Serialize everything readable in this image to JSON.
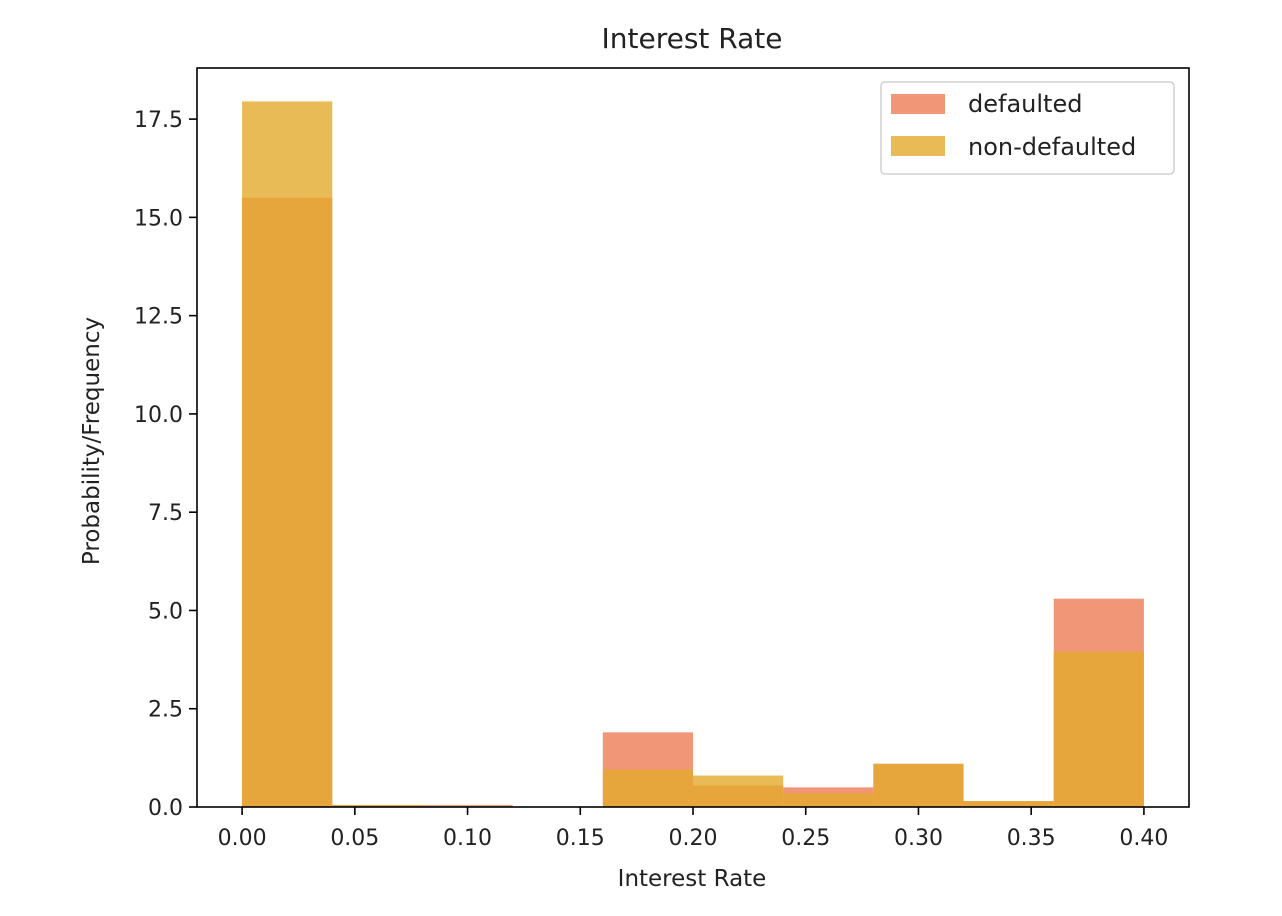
{
  "chart_data": {
    "type": "bar",
    "title": "Interest Rate",
    "xlabel": "Interest Rate",
    "ylabel": "Probability/Frequency",
    "xlim": [
      -0.02,
      0.42
    ],
    "ylim": [
      0,
      18.8
    ],
    "bin_edges": [
      0.0,
      0.04,
      0.08,
      0.12,
      0.16,
      0.2,
      0.24,
      0.28,
      0.32,
      0.36,
      0.4
    ],
    "xticks": [
      "0.00",
      "0.05",
      "0.10",
      "0.15",
      "0.20",
      "0.25",
      "0.30",
      "0.35",
      "0.40"
    ],
    "xtick_values": [
      0.0,
      0.05,
      0.1,
      0.15,
      0.2,
      0.25,
      0.3,
      0.35,
      0.4
    ],
    "yticks": [
      "0.0",
      "2.5",
      "5.0",
      "7.5",
      "10.0",
      "12.5",
      "15.0",
      "17.5"
    ],
    "ytick_values": [
      0,
      2.5,
      5.0,
      7.5,
      10.0,
      12.5,
      15.0,
      17.5
    ],
    "grid": false,
    "legend_position": "top-right",
    "series": [
      {
        "name": "defaulted",
        "color": "#ef7c56",
        "opacity": 0.8,
        "values": [
          15.5,
          0.05,
          0.05,
          0.0,
          1.9,
          0.55,
          0.5,
          1.1,
          0.15,
          5.3
        ]
      },
      {
        "name": "non-defaulted",
        "color": "#e2aa2c",
        "opacity": 0.8,
        "values": [
          17.95,
          0.05,
          0.0,
          0.0,
          0.95,
          0.8,
          0.35,
          1.1,
          0.15,
          3.95
        ]
      }
    ]
  }
}
